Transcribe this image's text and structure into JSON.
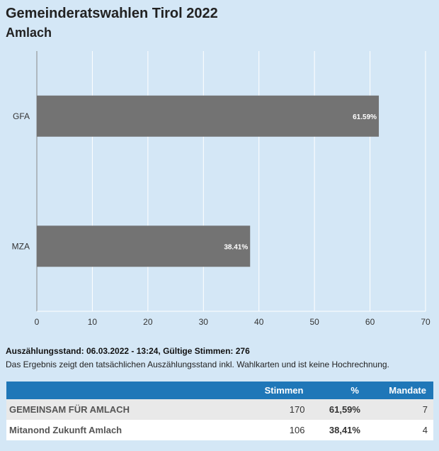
{
  "header": {
    "title": "Gemeinderatswahlen Tirol 2022",
    "subtitle": "Amlach"
  },
  "chart_data": {
    "type": "bar",
    "orientation": "horizontal",
    "categories": [
      "GFA",
      "MZA"
    ],
    "values": [
      61.59,
      38.41
    ],
    "value_labels": [
      "61.59%",
      "38.41%"
    ],
    "xlim": [
      0,
      70
    ],
    "xticks": [
      "0",
      "10",
      "20",
      "30",
      "40",
      "50",
      "60",
      "70"
    ],
    "grid": true,
    "bar_color": "#737373"
  },
  "status": {
    "label": "Auszählungsstand: 06.03.2022 - 13:24, Gültige Stimmen: 276",
    "note": "Das Ergebnis zeigt den tatsächlichen Auszählungsstand inkl. Wahlkarten und ist keine Hochrechnung."
  },
  "table": {
    "headers": [
      "",
      "Stimmen",
      "%",
      "Mandate"
    ],
    "rows": [
      {
        "name": "GEMEINSAM FÜR AMLACH",
        "votes": "170",
        "percent": "61,59%",
        "seats": "7"
      },
      {
        "name": "Mitanond Zukunft Amlach",
        "votes": "106",
        "percent": "38,41%",
        "seats": "4"
      }
    ]
  },
  "colors": {
    "background": "#d4e7f6",
    "table_header": "#1f77b8",
    "bar": "#737373"
  }
}
